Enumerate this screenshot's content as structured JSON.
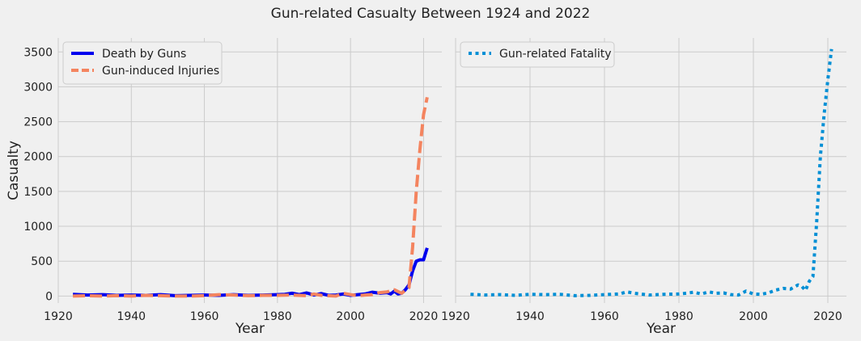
{
  "chart_data": {
    "title": "Gun-related Casualty Between 1924 and 2022",
    "shared_y": true,
    "ylabel": "Casualty",
    "ylim": [
      -100,
      3700
    ],
    "yticks": [
      0,
      500,
      1000,
      1500,
      2000,
      2500,
      3000,
      3500
    ],
    "xlim": [
      1920,
      2025
    ],
    "xticks": [
      1920,
      1940,
      1960,
      1980,
      2000,
      2020
    ],
    "grid": true,
    "subplots": [
      {
        "type": "line",
        "xlabel": "Year",
        "legend_position": "top-left",
        "series": [
          {
            "name": "Death by Guns",
            "color": "#0000ee",
            "style": "solid",
            "x": [
              1924,
              1928,
              1932,
              1936,
              1940,
              1944,
              1948,
              1952,
              1956,
              1960,
              1964,
              1968,
              1972,
              1976,
              1980,
              1982,
              1984,
              1986,
              1988,
              1990,
              1992,
              1994,
              1996,
              1998,
              2000,
              2002,
              2004,
              2006,
              2008,
              2010,
              2011,
              2012,
              2013,
              2014,
              2015,
              2016,
              2017,
              2018,
              2019,
              2020,
              2021
            ],
            "values": [
              25,
              15,
              20,
              10,
              15,
              10,
              20,
              5,
              10,
              15,
              10,
              20,
              10,
              15,
              20,
              25,
              40,
              20,
              45,
              15,
              35,
              10,
              15,
              30,
              10,
              20,
              30,
              55,
              40,
              50,
              30,
              70,
              30,
              40,
              90,
              160,
              360,
              500,
              520,
              520,
              690
            ]
          },
          {
            "name": "Gun-induced Injuries",
            "color": "#f4845f",
            "style": "dashed",
            "x": [
              1924,
              1928,
              1932,
              1936,
              1940,
              1944,
              1948,
              1952,
              1956,
              1960,
              1964,
              1968,
              1972,
              1976,
              1980,
              1984,
              1988,
              1990,
              1992,
              1996,
              1998,
              2000,
              2002,
              2004,
              2006,
              2008,
              2010,
              2012,
              2014,
              2016,
              2017,
              2018,
              2019,
              2020,
              2021
            ],
            "values": [
              0,
              5,
              0,
              5,
              0,
              10,
              5,
              0,
              0,
              5,
              20,
              15,
              5,
              10,
              10,
              15,
              5,
              30,
              10,
              0,
              40,
              20,
              5,
              15,
              20,
              50,
              60,
              90,
              40,
              120,
              700,
              1500,
              2100,
              2600,
              2850
            ]
          }
        ]
      },
      {
        "type": "line",
        "xlabel": "Year",
        "legend_position": "top-left",
        "series": [
          {
            "name": "Gun-related Fatality",
            "color": "#008fd5",
            "style": "dotted",
            "x": [
              1924,
              1928,
              1932,
              1936,
              1940,
              1944,
              1948,
              1952,
              1956,
              1960,
              1964,
              1966,
              1968,
              1972,
              1976,
              1980,
              1982,
              1984,
              1986,
              1988,
              1990,
              1992,
              1994,
              1996,
              1998,
              2000,
              2002,
              2004,
              2006,
              2008,
              2010,
              2011,
              2012,
              2013,
              2014,
              2015,
              2016,
              2017,
              2018,
              2019,
              2020,
              2021
            ],
            "values": [
              25,
              15,
              20,
              10,
              25,
              20,
              25,
              5,
              10,
              20,
              30,
              60,
              40,
              15,
              25,
              30,
              40,
              55,
              30,
              60,
              40,
              45,
              20,
              15,
              70,
              30,
              25,
              45,
              85,
              110,
              100,
              130,
              160,
              140,
              80,
              210,
              280,
              1060,
              2000,
              2600,
              3100,
              3540
            ]
          }
        ]
      }
    ]
  }
}
